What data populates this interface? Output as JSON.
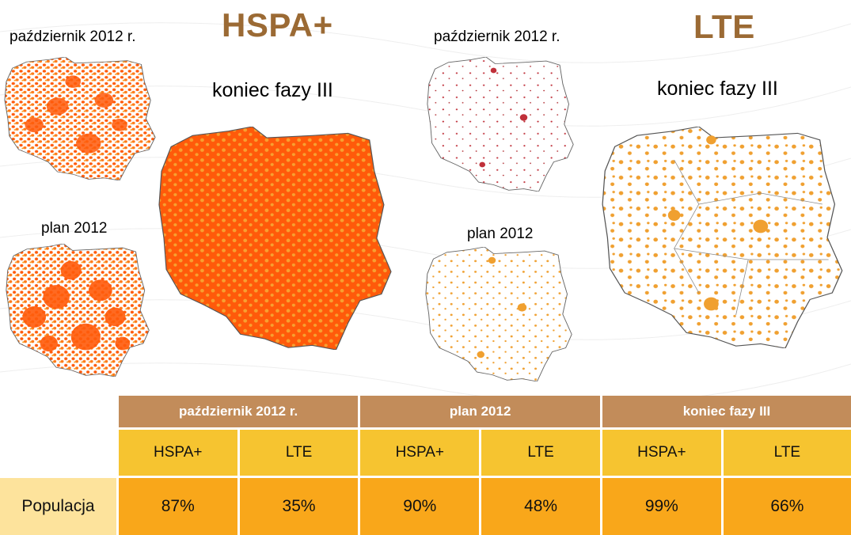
{
  "colors": {
    "title": "#9b6a34",
    "hspa_fill": "#ff5a0a",
    "hspa_dots": "#f5a020",
    "lte_dots": "#f0a030",
    "lte_dots_oct": "#c0303a",
    "table_header": "#c28c5a",
    "table_sub": "#f6c430",
    "table_cell": "#f9a71a",
    "table_rowlabel": "#fde39c"
  },
  "hspa": {
    "title": "HSPA+",
    "oct_label": "październik 2012 r.",
    "plan_label": "plan 2012",
    "end_label": "koniec fazy III"
  },
  "lte": {
    "title": "LTE",
    "oct_label": "październik 2012 r.",
    "plan_label": "plan 2012",
    "end_label": "koniec fazy III"
  },
  "table": {
    "headers": [
      "październik 2012 r.",
      "plan 2012",
      "koniec fazy III"
    ],
    "subheaders": [
      "HSPA+",
      "LTE",
      "HSPA+",
      "LTE",
      "HSPA+",
      "LTE"
    ],
    "row_label": "Populacja",
    "values": [
      "87%",
      "35%",
      "90%",
      "48%",
      "99%",
      "66%"
    ]
  },
  "map_icons": [
    "poland-map-hspa-october",
    "poland-map-hspa-plan",
    "poland-map-hspa-end",
    "poland-map-lte-october",
    "poland-map-lte-plan",
    "poland-map-lte-end"
  ]
}
